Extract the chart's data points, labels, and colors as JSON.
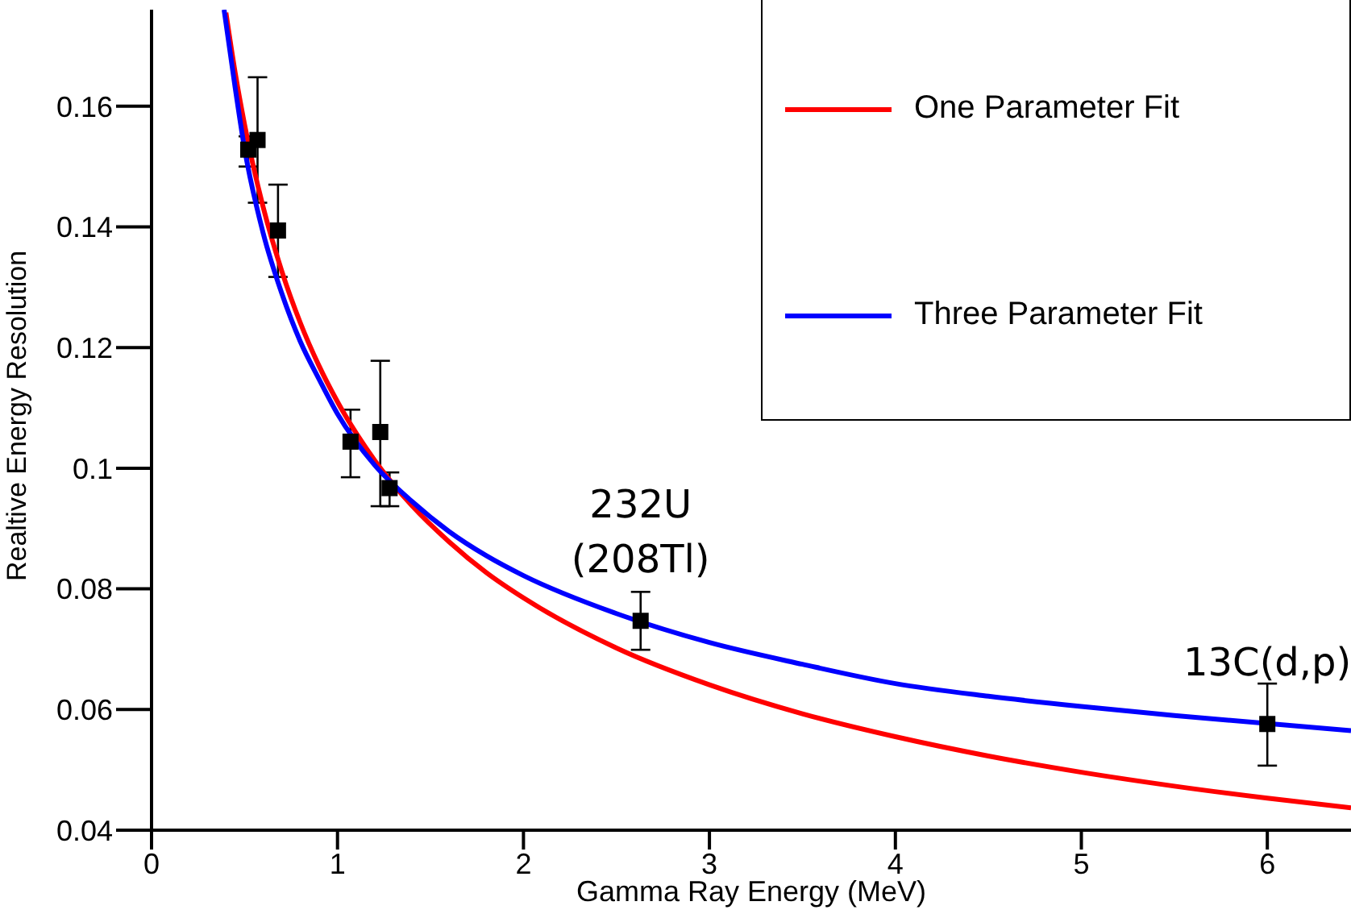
{
  "chart_data": {
    "type": "scatter",
    "xlabel": "Gamma Ray Energy (MeV)",
    "ylabel": "Realtive Energy Resolution",
    "xlim": [
      0,
      6.45
    ],
    "xticks": [
      0,
      1,
      2,
      3,
      4,
      5,
      6
    ],
    "ylim": [
      0.04,
      0.176
    ],
    "yticks": [
      0.04,
      0.06,
      0.08,
      0.1,
      0.12,
      0.14,
      0.16
    ],
    "grid": false,
    "legend": "top right",
    "series": [
      {
        "marker": "square",
        "color": "#000000",
        "x": [
          0.52,
          0.57,
          0.68,
          1.07,
          1.23,
          1.28,
          2.63,
          6.0
        ],
        "values": [
          0.1528,
          0.1544,
          0.1394,
          0.1044,
          0.106,
          0.0967,
          0.0747,
          0.0576
        ],
        "errors": [
          [
            0.15,
            0.155
          ],
          [
            0.144,
            0.1648
          ],
          [
            0.1317,
            0.147
          ],
          [
            0.0985,
            0.1097
          ],
          [
            0.0937,
            0.1178
          ],
          [
            0.0937,
            0.0993
          ],
          [
            0.0699,
            0.0795
          ],
          [
            0.0507,
            0.0643
          ]
        ]
      },
      {
        "type": "line",
        "name": "One Parameter Fit",
        "color": "#ff0000",
        "x": [
          0.4,
          0.45,
          0.5,
          0.6,
          0.7,
          0.8,
          0.9,
          1.0,
          1.2,
          1.4,
          1.6,
          1.8,
          2.0,
          2.5,
          3.0,
          3.5,
          4.0,
          4.5,
          5.0,
          5.5,
          6.0,
          6.45
        ],
        "values": [
          0.1755,
          0.1655,
          0.157,
          0.1433,
          0.1327,
          0.1241,
          0.117,
          0.111,
          0.1013,
          0.0938,
          0.0878,
          0.0827,
          0.0785,
          0.0702,
          0.0641,
          0.0593,
          0.0555,
          0.0523,
          0.0496,
          0.0473,
          0.0453,
          0.0437
        ]
      },
      {
        "type": "line",
        "name": "Three Parameter Fit",
        "color": "#0000ff",
        "x": [
          0.39,
          0.45,
          0.5,
          0.6,
          0.7,
          0.8,
          0.9,
          1.0,
          1.2,
          1.4,
          1.6,
          1.8,
          2.0,
          2.5,
          3.0,
          3.5,
          4.0,
          4.5,
          5.0,
          5.5,
          6.45
        ],
        "values": [
          0.176,
          0.163,
          0.153,
          0.139,
          0.129,
          0.121,
          0.1148,
          0.109,
          0.1005,
          0.0945,
          0.0895,
          0.0855,
          0.0822,
          0.0759,
          0.0711,
          0.0675,
          0.0643,
          0.0622,
          0.0605,
          0.059,
          0.0565
        ]
      }
    ],
    "annotations": [
      {
        "text": "232U (208Tl)",
        "x": 2.63,
        "y": 0.0747
      },
      {
        "text": "13C(d,p)",
        "x": 6.0,
        "y": 0.0576
      }
    ]
  }
}
